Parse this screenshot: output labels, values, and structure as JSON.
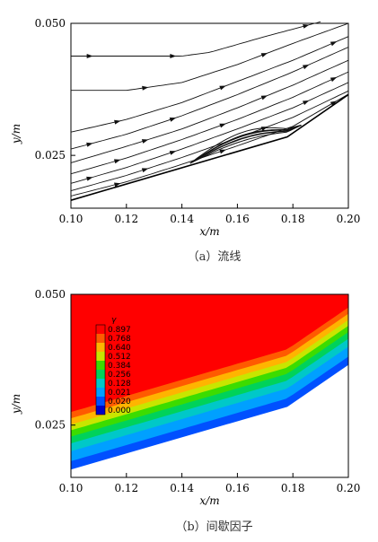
{
  "chart_data": [
    {
      "type": "line",
      "caption": "（a）流线",
      "xlabel": "x/m",
      "ylabel": "y/m",
      "xlim": [
        0.1,
        0.2
      ],
      "ylim": [
        0.015,
        0.05
      ],
      "xticks": [
        "0.10",
        "0.12",
        "0.14",
        "0.16",
        "0.18",
        "0.20"
      ],
      "yticks": [
        "0.025",
        "0.050"
      ],
      "grid": false,
      "wall": {
        "x": [
          0.1,
          0.178,
          0.2
        ],
        "y": [
          0.0165,
          0.0285,
          0.0365
        ]
      },
      "series": [
        {
          "x": [
            0.1,
            0.14,
            0.15,
            0.17,
            0.19
          ],
          "y": [
            0.0438,
            0.0438,
            0.0445,
            0.0475,
            0.0503
          ]
        },
        {
          "x": [
            0.1,
            0.12,
            0.14,
            0.16,
            0.18,
            0.2
          ],
          "y": [
            0.0373,
            0.0373,
            0.0388,
            0.0422,
            0.0462,
            0.05
          ]
        },
        {
          "x": [
            0.1,
            0.12,
            0.14,
            0.16,
            0.18,
            0.2
          ],
          "y": [
            0.0294,
            0.0318,
            0.035,
            0.039,
            0.043,
            0.0475
          ]
        },
        {
          "x": [
            0.1,
            0.12,
            0.14,
            0.16,
            0.18,
            0.2
          ],
          "y": [
            0.0262,
            0.029,
            0.0325,
            0.0365,
            0.0408,
            0.0455
          ]
        },
        {
          "x": [
            0.1,
            0.12,
            0.14,
            0.16,
            0.18,
            0.2
          ],
          "y": [
            0.0236,
            0.0267,
            0.03,
            0.034,
            0.0383,
            0.043
          ]
        },
        {
          "x": [
            0.1,
            0.12,
            0.14,
            0.16,
            0.18,
            0.2
          ],
          "y": [
            0.0215,
            0.0245,
            0.028,
            0.0318,
            0.036,
            0.0408
          ]
        },
        {
          "x": [
            0.1,
            0.12,
            0.14,
            0.16,
            0.18,
            0.2
          ],
          "y": [
            0.0197,
            0.0227,
            0.0262,
            0.03,
            0.034,
            0.0388
          ]
        },
        {
          "x": [
            0.1,
            0.12,
            0.14,
            0.16,
            0.18,
            0.2
          ],
          "y": [
            0.0183,
            0.0212,
            0.0246,
            0.0283,
            0.0322,
            0.0372
          ]
        },
        {
          "x": [
            0.1,
            0.12,
            0.14,
            0.16,
            0.18,
            0.2
          ],
          "y": [
            0.0173,
            0.02,
            0.0233,
            0.0268,
            0.0305,
            0.0366
          ]
        }
      ],
      "arrow_x": [
        0.107,
        0.117,
        0.127,
        0.137,
        0.155,
        0.17,
        0.185,
        0.195
      ]
    },
    {
      "type": "heatmap",
      "caption": "（b）间歇因子",
      "xlabel": "x/m",
      "ylabel": "y/m",
      "xlim": [
        0.1,
        0.2
      ],
      "ylim": [
        0.015,
        0.05
      ],
      "xticks": [
        "0.10",
        "0.12",
        "0.14",
        "0.16",
        "0.18",
        "0.20"
      ],
      "yticks": [
        "0.025",
        "0.050"
      ],
      "legend_title": "γ",
      "legend_levels": [
        "0.897",
        "0.768",
        "0.640",
        "0.512",
        "0.384",
        "0.256",
        "0.128",
        "0.021",
        "0.020",
        "0.000"
      ],
      "legend_colors": [
        "#ff0000",
        "#ff5a00",
        "#ffb400",
        "#c8e600",
        "#3cdc00",
        "#00d25a",
        "#00c8c8",
        "#00a0ff",
        "#0050ff",
        "#0000c8"
      ],
      "wall": {
        "x": [
          0.1,
          0.178,
          0.2
        ],
        "y": [
          0.0165,
          0.0285,
          0.0365
        ]
      },
      "band_offsets": [
        0.0016,
        0.0035,
        0.005,
        0.0063,
        0.0075,
        0.0086,
        0.0098,
        0.011
      ]
    }
  ]
}
